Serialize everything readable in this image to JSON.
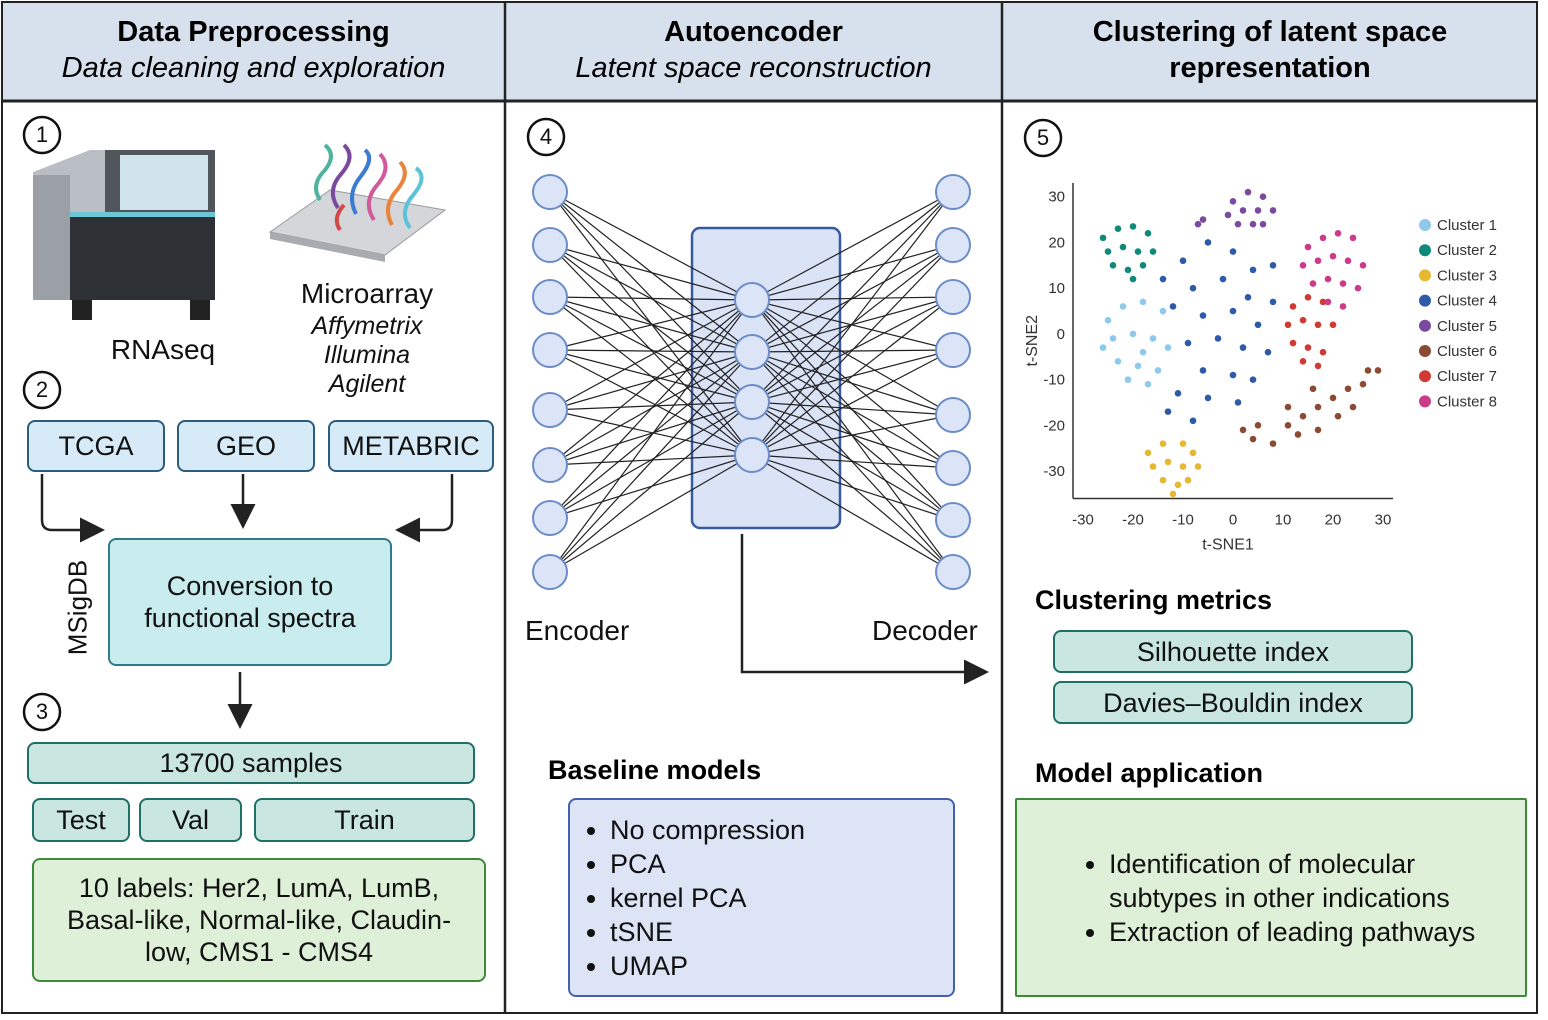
{
  "panels": [
    {
      "title": "Data Preprocessing",
      "subtitle": "Data cleaning and exploration"
    },
    {
      "title": "Autoencoder",
      "subtitle": "Latent space reconstruction"
    },
    {
      "title": "Clustering of latent space representation"
    }
  ],
  "steps": [
    "1",
    "2",
    "3",
    "4",
    "5"
  ],
  "rnaseq": "RNAseq",
  "microarray": {
    "title": "Microarray",
    "vendors": [
      "Affymetrix",
      "Illumina",
      "Agilent"
    ]
  },
  "databases": [
    "TCGA",
    "GEO",
    "METABRIC"
  ],
  "msigdb": "MSigDB",
  "conversion": "Conversion to functional spectra",
  "samples": "13700 samples",
  "splits": [
    "Test",
    "Val",
    "Train"
  ],
  "labels": "10 labels: Her2, LumA, LumB, Basal-like, Normal-like, Claudin-low, CMS1 - CMS4",
  "encoder": "Encoder",
  "decoder": "Decoder",
  "baseline": {
    "title": "Baseline models",
    "items": [
      "No compression",
      "PCA",
      "kernel PCA",
      "tSNE",
      "UMAP"
    ]
  },
  "chart_data": {
    "type": "scatter",
    "x_label": "t-SNE1",
    "y_label": "t-SNE2",
    "xlim": [
      -32,
      32
    ],
    "ylim": [
      -36,
      33
    ],
    "xticks": [
      -30,
      -20,
      -10,
      0,
      10,
      20,
      30
    ],
    "yticks": [
      -30,
      -20,
      -10,
      0,
      10,
      20,
      30
    ],
    "series": [
      {
        "name": "Cluster 1",
        "color": "#8ec9ec",
        "x": [
          -25,
          -22,
          -18,
          -14,
          -24,
          -20,
          -16,
          -13,
          -23,
          -19,
          -15,
          -21,
          -17,
          -26,
          -18
        ],
        "y": [
          3,
          6,
          7,
          5,
          -1,
          0,
          -1,
          -3,
          -6,
          -7,
          -8,
          -10,
          -11,
          -3,
          -4
        ]
      },
      {
        "name": "Cluster 2",
        "color": "#0f8a7a",
        "x": [
          -26,
          -23,
          -20,
          -17,
          -25,
          -22,
          -19,
          -16,
          -24,
          -21,
          -18,
          -20
        ],
        "y": [
          21,
          23,
          23.5,
          22,
          18,
          19,
          18,
          18,
          15,
          14,
          15,
          12
        ]
      },
      {
        "name": "Cluster 3",
        "color": "#e6b830",
        "x": [
          -17,
          -14,
          -10,
          -8,
          -16,
          -13,
          -10,
          -7,
          -14,
          -11,
          -9,
          -12
        ],
        "y": [
          -26,
          -24,
          -24,
          -26,
          -29,
          -28,
          -29,
          -29,
          -32,
          -33,
          -32,
          -35
        ]
      },
      {
        "name": "Cluster 4",
        "color": "#2f5aa8",
        "x": [
          -14,
          -10,
          -5,
          0,
          4,
          8,
          -8,
          -2,
          3,
          -12,
          -6,
          0,
          5,
          -9,
          -3,
          2,
          7,
          -6,
          0,
          -11,
          -5,
          1,
          -8,
          -13,
          4,
          8
        ],
        "y": [
          12,
          16,
          20,
          18,
          14,
          15,
          10,
          12,
          8,
          6,
          4,
          5,
          2,
          -2,
          -1,
          -3,
          -4,
          -8,
          -9,
          -13,
          -14,
          -15,
          -19,
          -17,
          -10,
          7
        ]
      },
      {
        "name": "Cluster 5",
        "color": "#7a4a9e",
        "x": [
          0,
          3,
          6,
          -1,
          2,
          5,
          8,
          1,
          4,
          6,
          -6,
          -7
        ],
        "y": [
          29,
          31,
          30,
          26,
          27,
          27,
          27,
          24,
          24,
          24,
          25,
          24
        ]
      },
      {
        "name": "Cluster 6",
        "color": "#8b4a32",
        "x": [
          2,
          5,
          4,
          8,
          11,
          14,
          17,
          20,
          23,
          13,
          17,
          21,
          24,
          26,
          27,
          29,
          11,
          16
        ],
        "y": [
          -21,
          -20,
          -23,
          -24,
          -20,
          -18,
          -16,
          -14,
          -12,
          -22,
          -21,
          -18,
          -16,
          -11,
          -8,
          -8,
          -16,
          -12
        ]
      },
      {
        "name": "Cluster 7",
        "color": "#d03a35",
        "x": [
          12,
          15,
          18,
          11,
          14,
          17,
          20,
          12,
          15,
          18,
          14,
          17
        ],
        "y": [
          6,
          8,
          7,
          2,
          3,
          2,
          2,
          -2,
          -3,
          -4,
          -6,
          -7
        ]
      },
      {
        "name": "Cluster 8",
        "color": "#cc3a8a",
        "x": [
          15,
          18,
          21,
          24,
          14,
          17,
          20,
          23,
          26,
          16,
          19,
          22,
          25,
          19,
          22
        ],
        "y": [
          19,
          21,
          22,
          21,
          15,
          16,
          17,
          16,
          15,
          11,
          12,
          11,
          10,
          7,
          6
        ]
      }
    ]
  },
  "metrics": {
    "title": "Clustering metrics",
    "items": [
      "Silhouette index",
      "Davies–Bouldin index"
    ]
  },
  "application": {
    "title": "Model application",
    "items": [
      "Identification of molecular subtypes in other indications",
      "Extraction of leading pathways"
    ]
  }
}
